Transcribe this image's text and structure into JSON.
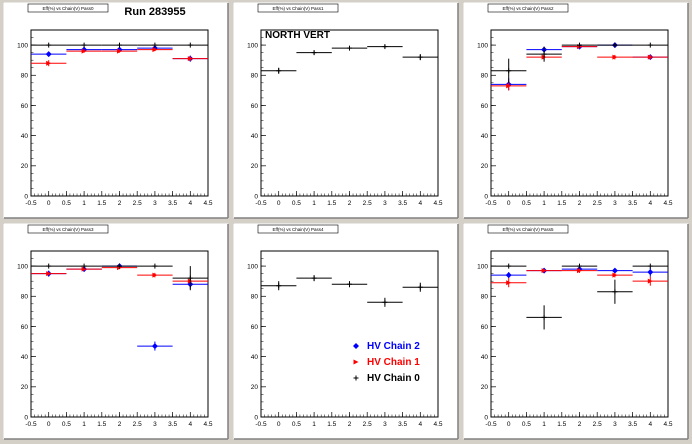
{
  "canvas": {
    "run_label": "Run 283955",
    "background": "#d4d0c8",
    "pad_color": "#ffffff"
  },
  "series_styles": [
    {
      "key": "hv2",
      "color": "#0000ff",
      "marker": "diamond"
    },
    {
      "key": "hv1",
      "color": "#ff0000",
      "marker": "triangle"
    },
    {
      "key": "hv0",
      "color": "#000000",
      "marker": "cross"
    }
  ],
  "legend": {
    "entries": [
      {
        "label": "HV Chain 2",
        "color": "#0000ff",
        "marker": "diamond"
      },
      {
        "label": "HV Chain 1",
        "color": "#ff0000",
        "marker": "triangle"
      },
      {
        "label": "HV Chain 0",
        "color": "#000000",
        "marker": "cross"
      }
    ]
  },
  "chart_data": [
    {
      "type": "scatter",
      "title": "",
      "pad_title": "Eff(%) vs Chain(V) Pass0",
      "annotation": "",
      "xlim": [
        -0.5,
        4.5
      ],
      "ylim": [
        0,
        110
      ],
      "xticks": [
        -0.5,
        0,
        0.5,
        1,
        1.5,
        2,
        2.5,
        3,
        3.5,
        4,
        4.5
      ],
      "yticks": [
        0,
        20,
        40,
        60,
        80,
        100
      ],
      "series": [
        {
          "key": "hv2",
          "points": [
            {
              "x": 0,
              "y": 94,
              "ey": 1
            },
            {
              "x": 1,
              "y": 97,
              "ey": 1.5
            },
            {
              "x": 2,
              "y": 97,
              "ey": 1.5
            },
            {
              "x": 3,
              "y": 98,
              "ey": 1
            },
            {
              "x": 4,
              "y": 91,
              "ey": 2
            }
          ]
        },
        {
          "key": "hv1",
          "points": [
            {
              "x": 0,
              "y": 88,
              "ey": 2
            },
            {
              "x": 1,
              "y": 96,
              "ey": 1
            },
            {
              "x": 2,
              "y": 96,
              "ey": 1
            },
            {
              "x": 3,
              "y": 97,
              "ey": 1
            },
            {
              "x": 4,
              "y": 91,
              "ey": 1.5
            }
          ]
        },
        {
          "key": "hv0",
          "points": [
            {
              "x": 0,
              "y": 100,
              "ey": 0
            },
            {
              "x": 1,
              "y": 100,
              "ey": 0
            },
            {
              "x": 2,
              "y": 100,
              "ey": 0
            },
            {
              "x": 3,
              "y": 100,
              "ey": 0
            },
            {
              "x": 4,
              "y": 100,
              "ey": 0
            }
          ]
        }
      ]
    },
    {
      "type": "scatter",
      "title": "",
      "pad_title": "Eff(%) vs Chain(V) Pass1",
      "annotation": "NORTH VERT",
      "xlim": [
        -0.5,
        4.5
      ],
      "ylim": [
        0,
        110
      ],
      "xticks": [
        -0.5,
        0,
        0.5,
        1,
        1.5,
        2,
        2.5,
        3,
        3.5,
        4,
        4.5
      ],
      "yticks": [
        0,
        20,
        40,
        60,
        80,
        100
      ],
      "series": [
        {
          "key": "hv0",
          "points": [
            {
              "x": 0,
              "y": 83,
              "ey": 2
            },
            {
              "x": 1,
              "y": 95,
              "ey": 1.5
            },
            {
              "x": 2,
              "y": 98,
              "ey": 1
            },
            {
              "x": 3,
              "y": 99,
              "ey": 1
            },
            {
              "x": 4,
              "y": 92,
              "ey": 2
            }
          ]
        }
      ]
    },
    {
      "type": "scatter",
      "title": "",
      "pad_title": "Eff(%) vs Chain(V) Pass2",
      "annotation": "",
      "xlim": [
        -0.5,
        4.5
      ],
      "ylim": [
        0,
        110
      ],
      "xticks": [
        -0.5,
        0,
        0.5,
        1,
        1.5,
        2,
        2.5,
        3,
        3.5,
        4,
        4.5
      ],
      "yticks": [
        0,
        20,
        40,
        60,
        80,
        100
      ],
      "series": [
        {
          "key": "hv2",
          "points": [
            {
              "x": 0,
              "y": 74,
              "ey": 4
            },
            {
              "x": 1,
              "y": 97,
              "ey": 1.5
            },
            {
              "x": 2,
              "y": 99,
              "ey": 1
            },
            {
              "x": 3,
              "y": 100,
              "ey": 1
            },
            {
              "x": 4,
              "y": 92,
              "ey": 1.5
            }
          ]
        },
        {
          "key": "hv1",
          "points": [
            {
              "x": 0,
              "y": 73,
              "ey": 3
            },
            {
              "x": 1,
              "y": 92,
              "ey": 2
            },
            {
              "x": 2,
              "y": 99,
              "ey": 1
            },
            {
              "x": 3,
              "y": 92,
              "ey": 1.5
            },
            {
              "x": 4,
              "y": 92,
              "ey": 1.5
            }
          ]
        },
        {
          "key": "hv0",
          "points": [
            {
              "x": 0,
              "y": 83,
              "ey": 8
            },
            {
              "x": 1,
              "y": 94,
              "ey": 5
            },
            {
              "x": 2,
              "y": 100,
              "ey": 0
            },
            {
              "x": 3,
              "y": 100,
              "ey": 0
            },
            {
              "x": 4,
              "y": 100,
              "ey": 0
            }
          ]
        }
      ]
    },
    {
      "type": "scatter",
      "title": "",
      "pad_title": "Eff(%) vs Chain(V) Pass3",
      "annotation": "",
      "xlim": [
        -0.5,
        4.5
      ],
      "ylim": [
        0,
        110
      ],
      "xticks": [
        -0.5,
        0,
        0.5,
        1,
        1.5,
        2,
        2.5,
        3,
        3.5,
        4,
        4.5
      ],
      "yticks": [
        0,
        20,
        40,
        60,
        80,
        100
      ],
      "series": [
        {
          "key": "hv2",
          "points": [
            {
              "x": 0,
              "y": 95,
              "ey": 2
            },
            {
              "x": 1,
              "y": 98,
              "ey": 1.5
            },
            {
              "x": 2,
              "y": 100,
              "ey": 1
            },
            {
              "x": 3,
              "y": 47,
              "ey": 3
            },
            {
              "x": 4,
              "y": 88,
              "ey": 3
            }
          ]
        },
        {
          "key": "hv1",
          "points": [
            {
              "x": 0,
              "y": 95,
              "ey": 1
            },
            {
              "x": 1,
              "y": 98,
              "ey": 1
            },
            {
              "x": 2,
              "y": 99,
              "ey": 1
            },
            {
              "x": 3,
              "y": 94,
              "ey": 1.5
            },
            {
              "x": 4,
              "y": 90,
              "ey": 2
            }
          ]
        },
        {
          "key": "hv0",
          "points": [
            {
              "x": 0,
              "y": 100,
              "ey": 0
            },
            {
              "x": 1,
              "y": 100,
              "ey": 0
            },
            {
              "x": 2,
              "y": 100,
              "ey": 0
            },
            {
              "x": 3,
              "y": 100,
              "ey": 0
            },
            {
              "x": 4,
              "y": 92,
              "ey": 8
            }
          ]
        }
      ]
    },
    {
      "type": "scatter",
      "title": "",
      "pad_title": "Eff(%) vs Chain(V) Pass4",
      "annotation": "",
      "xlim": [
        -0.5,
        4.5
      ],
      "ylim": [
        0,
        110
      ],
      "xticks": [
        -0.5,
        0,
        0.5,
        1,
        1.5,
        2,
        2.5,
        3,
        3.5,
        4,
        4.5
      ],
      "yticks": [
        0,
        20,
        40,
        60,
        80,
        100
      ],
      "series": [
        {
          "key": "hv0",
          "points": [
            {
              "x": 0,
              "y": 87,
              "ey": 3
            },
            {
              "x": 1,
              "y": 92,
              "ey": 2
            },
            {
              "x": 2,
              "y": 88,
              "ey": 2
            },
            {
              "x": 3,
              "y": 76,
              "ey": 3
            },
            {
              "x": 4,
              "y": 86,
              "ey": 3
            }
          ]
        }
      ],
      "show_legend": true
    },
    {
      "type": "scatter",
      "title": "",
      "pad_title": "Eff(%) vs Chain(V) Pass5",
      "annotation": "",
      "xlim": [
        -0.5,
        4.5
      ],
      "ylim": [
        0,
        110
      ],
      "xticks": [
        -0.5,
        0,
        0.5,
        1,
        1.5,
        2,
        2.5,
        3,
        3.5,
        4,
        4.5
      ],
      "yticks": [
        0,
        20,
        40,
        60,
        80,
        100
      ],
      "series": [
        {
          "key": "hv2",
          "points": [
            {
              "x": 0,
              "y": 94,
              "ey": 2
            },
            {
              "x": 1,
              "y": 97,
              "ey": 1.5
            },
            {
              "x": 2,
              "y": 98,
              "ey": 2
            },
            {
              "x": 3,
              "y": 97,
              "ey": 1.5
            },
            {
              "x": 4,
              "y": 96,
              "ey": 3
            }
          ]
        },
        {
          "key": "hv1",
          "points": [
            {
              "x": 0,
              "y": 89,
              "ey": 3
            },
            {
              "x": 1,
              "y": 97,
              "ey": 1
            },
            {
              "x": 2,
              "y": 97,
              "ey": 1.5
            },
            {
              "x": 3,
              "y": 94,
              "ey": 1.5
            },
            {
              "x": 4,
              "y": 90,
              "ey": 3
            }
          ]
        },
        {
          "key": "hv0",
          "points": [
            {
              "x": 0,
              "y": 100,
              "ey": 0
            },
            {
              "x": 1,
              "y": 66,
              "ey": 8
            },
            {
              "x": 2,
              "y": 100,
              "ey": 0
            },
            {
              "x": 3,
              "y": 83,
              "ey": 8
            },
            {
              "x": 4,
              "y": 100,
              "ey": 0
            }
          ]
        }
      ]
    }
  ]
}
